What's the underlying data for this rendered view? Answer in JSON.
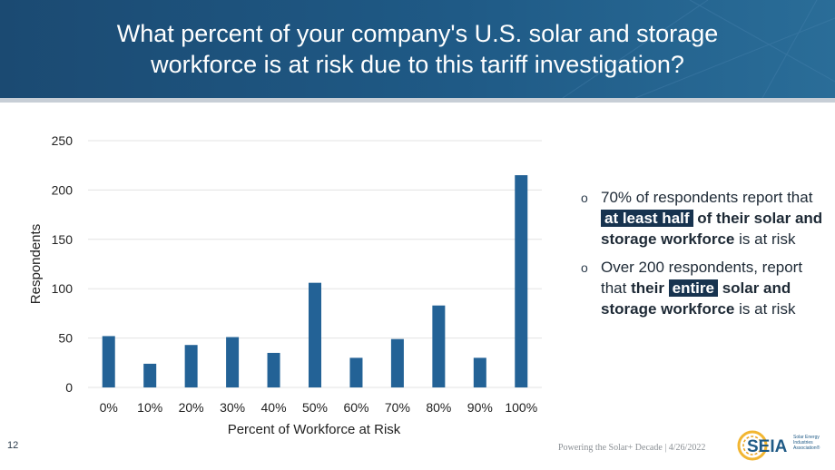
{
  "title_line1": "What percent of your company's U.S. solar and storage",
  "title_line2": "workforce is at risk due to this tariff investigation?",
  "chart_data": {
    "type": "bar",
    "categories": [
      "0%",
      "10%",
      "20%",
      "30%",
      "40%",
      "50%",
      "60%",
      "70%",
      "80%",
      "90%",
      "100%"
    ],
    "values": [
      52,
      24,
      43,
      51,
      35,
      106,
      30,
      49,
      83,
      30,
      215
    ],
    "xlabel": "Percent of Workforce at Risk",
    "ylabel": "Respondents",
    "ylim": [
      0,
      250
    ],
    "yticks": [
      0,
      50,
      100,
      150,
      200,
      250
    ],
    "grid": true,
    "bar_color": "#236296"
  },
  "bullets": {
    "b1_part1": "70% of respondents report that",
    "b1_highlight": "at least half",
    "b1_bold": "of their solar and storage workforce",
    "b1_tail": "is at risk",
    "b2_part1": "Over 200 respondents, report that",
    "b2_bold1": "their",
    "b2_highlight": "entire",
    "b2_bold2": "solar and storage workforce",
    "b2_tail": "is at risk"
  },
  "page_number": "12",
  "footer_text": "Powering the Solar+ Decade | 4/26/2022",
  "logo": {
    "text": "SEIA",
    "subtext_line1": "Solar Energy",
    "subtext_line2": "Industries",
    "subtext_line3": "Association®"
  }
}
